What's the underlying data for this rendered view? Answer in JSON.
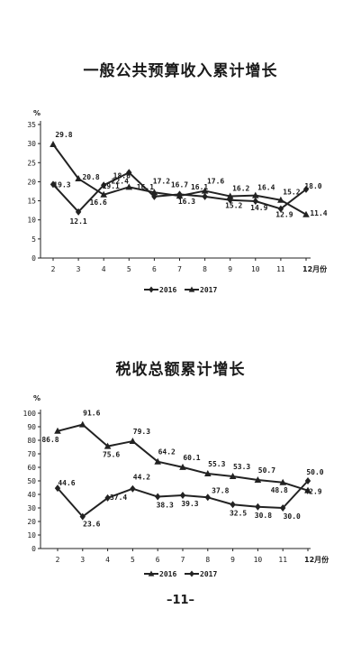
{
  "page_number": "–11–",
  "chart_data": [
    {
      "type": "line",
      "title": "一般公共预算收入累计增长",
      "ylabel": "%",
      "categories": [
        "2",
        "3",
        "4",
        "5",
        "6",
        "7",
        "8",
        "9",
        "10",
        "11",
        "12月份"
      ],
      "ylim": [
        0,
        35
      ],
      "yticks": [
        0,
        5,
        10,
        15,
        20,
        25,
        30,
        35
      ],
      "grid": false,
      "legend_position": "bottom-center",
      "series": [
        {
          "name": "2016",
          "values": [
            19.3,
            12.1,
            19.1,
            22.4,
            16.1,
            16.7,
            16.1,
            15.2,
            14.9,
            12.9,
            18.0
          ],
          "labels": [
            "19.3",
            "12.1",
            "19.1",
            "22.4",
            "16.1",
            "16.7",
            "16.1",
            "15.2",
            "14.9",
            "12.9",
            "18.0"
          ],
          "color": "#222222",
          "marker": "diamond"
        },
        {
          "name": "2017",
          "values": [
            29.8,
            20.8,
            16.6,
            18.6,
            17.2,
            16.3,
            17.6,
            16.2,
            16.4,
            15.2,
            11.4
          ],
          "labels": [
            "29.8",
            "20.8",
            "16.6",
            "18.6",
            "17.2",
            "16.3",
            "17.6",
            "16.2",
            "16.4",
            "15.2",
            "11.4"
          ],
          "color": "#222222",
          "marker": "triangle"
        }
      ]
    },
    {
      "type": "line",
      "title": "税收总额累计增长",
      "ylabel": "%",
      "categories": [
        "2",
        "3",
        "4",
        "5",
        "6",
        "7",
        "8",
        "9",
        "10",
        "11",
        "12月份"
      ],
      "ylim": [
        0,
        100
      ],
      "yticks": [
        0,
        10,
        20,
        30,
        40,
        50,
        60,
        70,
        80,
        90,
        100
      ],
      "grid": false,
      "legend_position": "bottom-center",
      "series": [
        {
          "name": "2016",
          "values": [
            86.8,
            91.6,
            75.6,
            79.3,
            64.2,
            60.1,
            55.3,
            53.3,
            50.7,
            48.8,
            42.9
          ],
          "labels": [
            "86.8",
            "91.6",
            "75.6",
            "79.3",
            "64.2",
            "60.1",
            "55.3",
            "53.3",
            "50.7",
            "48.8",
            "42.9"
          ],
          "color": "#222222",
          "marker": "triangle"
        },
        {
          "name": "2017",
          "values": [
            44.6,
            23.6,
            37.4,
            44.2,
            38.3,
            39.3,
            37.8,
            32.5,
            30.8,
            30.0,
            50.0
          ],
          "labels": [
            "44.6",
            "23.6",
            "37.4",
            "44.2",
            "38.3",
            "39.3",
            "37.8",
            "32.5",
            "30.8",
            "30.0",
            "50.0"
          ],
          "color": "#222222",
          "marker": "diamond"
        }
      ]
    }
  ]
}
